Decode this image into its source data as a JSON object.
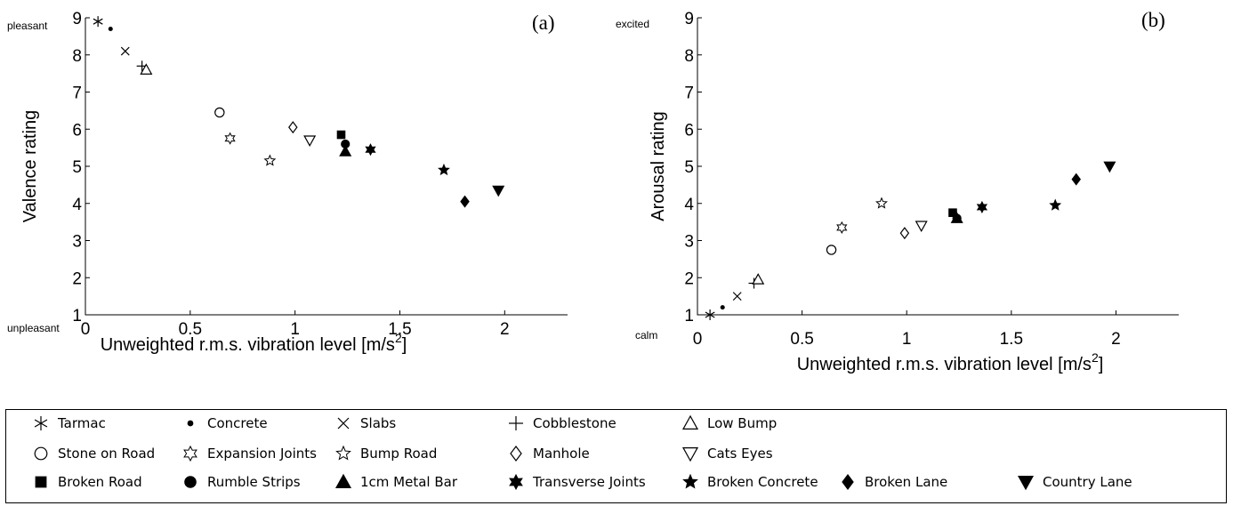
{
  "chart_data": [
    {
      "type": "scatter",
      "panel_label": "(a)",
      "xlabel_main": "Unweighted r.m.s. vibration level [m/s",
      "xlabel_sup": "2",
      "xlabel_end": "]",
      "ylabel": "Valence rating",
      "xlim": [
        0,
        2.3
      ],
      "ylim": [
        1,
        9
      ],
      "xticks": [
        "0",
        "0.5",
        "1",
        "1.5",
        "2"
      ],
      "yticks": [
        "1",
        "2",
        "3",
        "4",
        "5",
        "6",
        "7",
        "8",
        "9"
      ],
      "y_top_anchor": "pleasant",
      "y_bottom_anchor": "unpleasant",
      "points": [
        {
          "series": "Tarmac",
          "x": 0.06,
          "y": 8.9
        },
        {
          "series": "Concrete",
          "x": 0.12,
          "y": 8.7
        },
        {
          "series": "Slabs",
          "x": 0.19,
          "y": 8.1
        },
        {
          "series": "Cobblestone",
          "x": 0.27,
          "y": 7.7
        },
        {
          "series": "Low Bump",
          "x": 0.29,
          "y": 7.6
        },
        {
          "series": "Stone on Road",
          "x": 0.64,
          "y": 6.45
        },
        {
          "series": "Expansion Joints",
          "x": 0.69,
          "y": 5.75
        },
        {
          "series": "Bump Road",
          "x": 0.88,
          "y": 5.15
        },
        {
          "series": "Manhole",
          "x": 0.99,
          "y": 6.05
        },
        {
          "series": "Cats Eyes",
          "x": 1.07,
          "y": 5.7
        },
        {
          "series": "Broken Road",
          "x": 1.22,
          "y": 5.85
        },
        {
          "series": "Rumble Strips",
          "x": 1.24,
          "y": 5.6
        },
        {
          "series": "1cm Metal Bar",
          "x": 1.24,
          "y": 5.4
        },
        {
          "series": "Transverse Joints",
          "x": 1.36,
          "y": 5.45
        },
        {
          "series": "Broken Concrete",
          "x": 1.71,
          "y": 4.9
        },
        {
          "series": "Broken Lane",
          "x": 1.81,
          "y": 4.05
        },
        {
          "series": "Country Lane",
          "x": 1.97,
          "y": 4.35
        }
      ]
    },
    {
      "type": "scatter",
      "panel_label": "(b)",
      "xlabel_main": "Unweighted r.m.s. vibration level [m/s",
      "xlabel_sup": "2",
      "xlabel_end": "]",
      "ylabel": "Arousal rating",
      "xlim": [
        0,
        2.3
      ],
      "ylim": [
        1,
        9
      ],
      "xticks": [
        "0",
        "0.5",
        "1",
        "1.5",
        "2"
      ],
      "yticks": [
        "1",
        "2",
        "3",
        "4",
        "5",
        "6",
        "7",
        "8",
        "9"
      ],
      "y_top_anchor": "excited",
      "y_bottom_anchor": "calm",
      "points": [
        {
          "series": "Tarmac",
          "x": 0.06,
          "y": 1.0
        },
        {
          "series": "Concrete",
          "x": 0.12,
          "y": 1.2
        },
        {
          "series": "Slabs",
          "x": 0.19,
          "y": 1.5
        },
        {
          "series": "Cobblestone",
          "x": 0.27,
          "y": 1.85
        },
        {
          "series": "Low Bump",
          "x": 0.29,
          "y": 1.95
        },
        {
          "series": "Stone on Road",
          "x": 0.64,
          "y": 2.75
        },
        {
          "series": "Expansion Joints",
          "x": 0.69,
          "y": 3.35
        },
        {
          "series": "Bump Road",
          "x": 0.88,
          "y": 4.0
        },
        {
          "series": "Manhole",
          "x": 0.99,
          "y": 3.2
        },
        {
          "series": "Cats Eyes",
          "x": 1.07,
          "y": 3.4
        },
        {
          "series": "Broken Road",
          "x": 1.22,
          "y": 3.75
        },
        {
          "series": "Rumble Strips",
          "x": 1.24,
          "y": 3.6
        },
        {
          "series": "1cm Metal Bar",
          "x": 1.24,
          "y": 3.6
        },
        {
          "series": "Transverse Joints",
          "x": 1.36,
          "y": 3.9
        },
        {
          "series": "Broken Concrete",
          "x": 1.71,
          "y": 3.95
        },
        {
          "series": "Broken Lane",
          "x": 1.81,
          "y": 4.65
        },
        {
          "series": "Country Lane",
          "x": 1.97,
          "y": 5.0
        }
      ]
    }
  ],
  "legend": [
    {
      "name": "Tarmac",
      "marker": "asterisk-icon"
    },
    {
      "name": "Concrete",
      "marker": "small-dot-icon"
    },
    {
      "name": "Slabs",
      "marker": "cross-x-icon"
    },
    {
      "name": "Cobblestone",
      "marker": "plus-icon"
    },
    {
      "name": "Low Bump",
      "marker": "triangle-up-open-icon"
    },
    {
      "name": "Stone on Road",
      "marker": "circle-open-icon"
    },
    {
      "name": "Expansion Joints",
      "marker": "hexagram-open-icon"
    },
    {
      "name": "Bump Road",
      "marker": "star-open-icon"
    },
    {
      "name": "Manhole",
      "marker": "diamond-open-icon"
    },
    {
      "name": "Cats Eyes",
      "marker": "triangle-down-open-icon"
    },
    {
      "name": "Broken Road",
      "marker": "square-filled-icon"
    },
    {
      "name": "Rumble Strips",
      "marker": "circle-filled-icon"
    },
    {
      "name": "1cm Metal Bar",
      "marker": "triangle-up-filled-icon"
    },
    {
      "name": "Transverse Joints",
      "marker": "hexagram-filled-icon"
    },
    {
      "name": "Broken Concrete",
      "marker": "star-filled-icon"
    },
    {
      "name": "Broken Lane",
      "marker": "diamond-filled-icon"
    },
    {
      "name": "Country Lane",
      "marker": "triangle-down-filled-icon"
    }
  ]
}
